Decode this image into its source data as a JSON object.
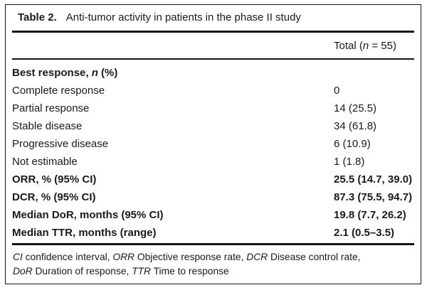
{
  "page": {
    "background_color": "#ffffff",
    "text_color": "#1a1a1a",
    "rule_color": "#141414"
  },
  "table": {
    "label": "Table 2.",
    "caption": "Anti-tumor activity in patients in the phase II study",
    "header": {
      "total_segments": [
        {
          "t": "Total (",
          "s": ""
        },
        {
          "t": "n",
          "s": "i"
        },
        {
          "t": " = 55)",
          "s": ""
        }
      ]
    },
    "rows": [
      {
        "bold": true,
        "label_segments": [
          {
            "t": "Best response, ",
            "s": ""
          },
          {
            "t": "n",
            "s": "i"
          },
          {
            "t": " (%)",
            "s": ""
          }
        ],
        "value": ""
      },
      {
        "bold": false,
        "label_segments": [
          {
            "t": "Complete response",
            "s": ""
          }
        ],
        "value": "0"
      },
      {
        "bold": false,
        "label_segments": [
          {
            "t": "Partial response",
            "s": ""
          }
        ],
        "value": "14 (25.5)"
      },
      {
        "bold": false,
        "label_segments": [
          {
            "t": "Stable disease",
            "s": ""
          }
        ],
        "value": "34 (61.8)"
      },
      {
        "bold": false,
        "label_segments": [
          {
            "t": "Progressive disease",
            "s": ""
          }
        ],
        "value": "6 (10.9)"
      },
      {
        "bold": false,
        "label_segments": [
          {
            "t": "Not estimable",
            "s": ""
          }
        ],
        "value": "1 (1.8)"
      },
      {
        "bold": true,
        "label_segments": [
          {
            "t": "ORR, % (95% CI)",
            "s": ""
          }
        ],
        "value": "25.5 (14.7, 39.0)"
      },
      {
        "bold": true,
        "label_segments": [
          {
            "t": "DCR, % (95% CI)",
            "s": ""
          }
        ],
        "value": "87.3 (75.5, 94.7)"
      },
      {
        "bold": true,
        "label_segments": [
          {
            "t": "Median DoR, months (95% CI)",
            "s": ""
          }
        ],
        "value": "19.8 (7.7, 26.2)"
      },
      {
        "bold": true,
        "label_segments": [
          {
            "t": "Median TTR, months (range)",
            "s": ""
          }
        ],
        "value": "2.1 (0.5–3.5)"
      }
    ],
    "footnote_lines": [
      [
        {
          "t": "CI",
          "s": "i"
        },
        {
          "t": " confidence interval, ",
          "s": ""
        },
        {
          "t": "ORR",
          "s": "i"
        },
        {
          "t": " Objective response rate, ",
          "s": ""
        },
        {
          "t": "DCR",
          "s": "i"
        },
        {
          "t": " Disease control rate,",
          "s": ""
        }
      ],
      [
        {
          "t": "DoR",
          "s": "i"
        },
        {
          "t": " Duration of response, ",
          "s": ""
        },
        {
          "t": "TTR",
          "s": "i"
        },
        {
          "t": " Time to response",
          "s": ""
        }
      ]
    ]
  }
}
